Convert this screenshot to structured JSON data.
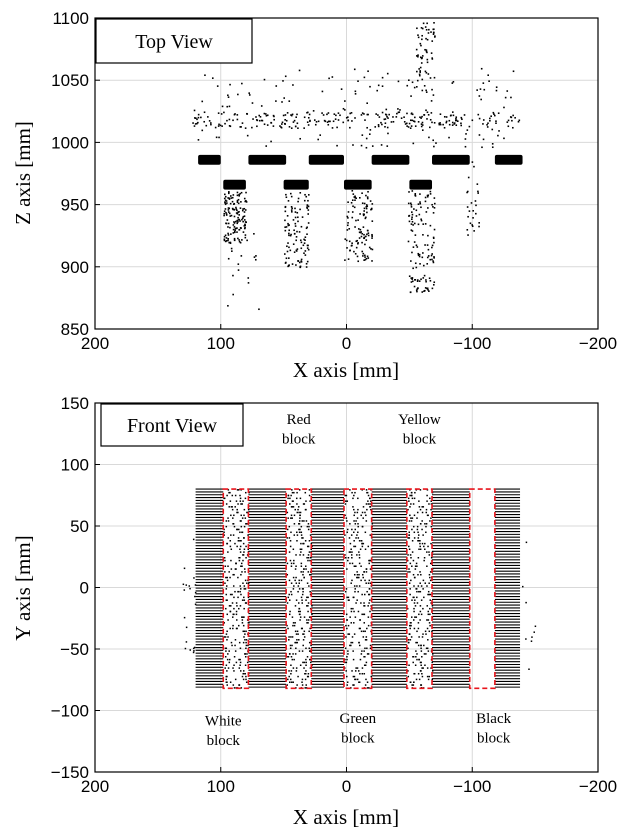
{
  "chart_data": [
    {
      "type": "scatter",
      "view_label": "Top View",
      "xlabel": "X axis [mm]",
      "ylabel": "Z axis [mm]",
      "xlim": [
        200,
        -200
      ],
      "ylim": [
        850,
        1100
      ],
      "x_reversed": true,
      "xticks": [
        200,
        100,
        0,
        -100,
        -200
      ],
      "yticks": [
        850,
        900,
        950,
        1000,
        1050,
        1100
      ],
      "xtick_labels": [
        "200",
        "100",
        "0",
        "−100",
        "−200"
      ],
      "ytick_labels": [
        "850",
        "900",
        "950",
        "1000",
        "1050",
        "1100"
      ],
      "grid": true,
      "point_color": "#000000",
      "dense_bands": [
        {
          "x_range": [
            118,
            100
          ],
          "z_range": [
            982,
            990
          ]
        },
        {
          "x_range": [
            78,
            48
          ],
          "z_range": [
            982,
            990
          ]
        },
        {
          "x_range": [
            30,
            2
          ],
          "z_range": [
            982,
            990
          ]
        },
        {
          "x_range": [
            -20,
            -50
          ],
          "z_range": [
            982,
            990
          ]
        },
        {
          "x_range": [
            -68,
            -98
          ],
          "z_range": [
            982,
            990
          ]
        },
        {
          "x_range": [
            -118,
            -140
          ],
          "z_range": [
            982,
            990
          ]
        },
        {
          "x_range": [
            98,
            80
          ],
          "z_range": [
            962,
            970
          ]
        },
        {
          "x_range": [
            50,
            30
          ],
          "z_range": [
            962,
            970
          ]
        },
        {
          "x_range": [
            2,
            -20
          ],
          "z_range": [
            962,
            970
          ]
        },
        {
          "x_range": [
            -50,
            -68
          ],
          "z_range": [
            962,
            970
          ]
        }
      ],
      "scatter_regions": [
        {
          "x_range": [
            125,
            -138
          ],
          "z_range": [
            1012,
            1025
          ],
          "count": 230
        },
        {
          "x_range": [
            122,
            -135
          ],
          "z_range": [
            996,
            1060
          ],
          "count": 160
        },
        {
          "x_range": [
            98,
            80
          ],
          "z_range": [
            920,
            962
          ],
          "count": 140
        },
        {
          "x_range": [
            50,
            30
          ],
          "z_range": [
            900,
            962
          ],
          "count": 110
        },
        {
          "x_range": [
            2,
            -20
          ],
          "z_range": [
            905,
            962
          ],
          "count": 110
        },
        {
          "x_range": [
            -48,
            -70
          ],
          "z_range": [
            880,
            962
          ],
          "count": 130
        },
        {
          "x_range": [
            -55,
            -70
          ],
          "z_range": [
            1040,
            1100
          ],
          "count": 60
        },
        {
          "x_range": [
            -95,
            -105
          ],
          "z_range": [
            918,
            985
          ],
          "count": 25
        },
        {
          "x_range": [
            95,
            70
          ],
          "z_range": [
            860,
            930
          ],
          "count": 20
        }
      ]
    },
    {
      "type": "scatter",
      "view_label": "Front View",
      "xlabel": "X axis [mm]",
      "ylabel": "Y axis [mm]",
      "xlim": [
        200,
        -200
      ],
      "ylim": [
        -150,
        150
      ],
      "x_reversed": true,
      "xticks": [
        200,
        100,
        0,
        -100,
        -200
      ],
      "yticks": [
        -150,
        -100,
        -50,
        0,
        50,
        100,
        150
      ],
      "xtick_labels": [
        "200",
        "100",
        "0",
        "−100",
        "−200"
      ],
      "ytick_labels": [
        "−150",
        "−100",
        "−50",
        "0",
        "50",
        "100",
        "150"
      ],
      "grid": true,
      "point_color": "#000000",
      "data_extent": {
        "x_range": [
          120,
          -138
        ],
        "y_range": [
          -81,
          82
        ]
      },
      "stripe_spacing_y": 2.3,
      "blocks": [
        {
          "name": "White",
          "label": [
            "White",
            "block"
          ],
          "x_range": [
            98,
            78
          ],
          "y_range": [
            -82,
            80
          ],
          "label_x": 98,
          "label_y": [
            -112,
            -128
          ],
          "fill": "sparse"
        },
        {
          "name": "Red",
          "label": [
            "Red",
            "block"
          ],
          "x_range": [
            48,
            28
          ],
          "y_range": [
            -82,
            80
          ],
          "label_x": 38,
          "label_y": [
            133,
            117
          ],
          "fill": "sparse"
        },
        {
          "name": "Green",
          "label": [
            "Green",
            "block"
          ],
          "x_range": [
            2,
            -20
          ],
          "y_range": [
            -82,
            80
          ],
          "label_x": -9,
          "label_y": [
            -110,
            -126
          ],
          "fill": "sparse"
        },
        {
          "name": "Yellow",
          "label": [
            "Yellow",
            "block"
          ],
          "x_range": [
            -48,
            -68
          ],
          "y_range": [
            -82,
            80
          ],
          "label_x": -58,
          "label_y": [
            133,
            117
          ],
          "fill": "sparse"
        },
        {
          "name": "Black",
          "label": [
            "Black",
            "block"
          ],
          "x_range": [
            -98,
            -118
          ],
          "y_range": [
            -82,
            80
          ],
          "label_x": -117,
          "label_y": [
            -110,
            -126
          ],
          "fill": "empty"
        }
      ],
      "block_outline_color": "#e8141b"
    }
  ]
}
